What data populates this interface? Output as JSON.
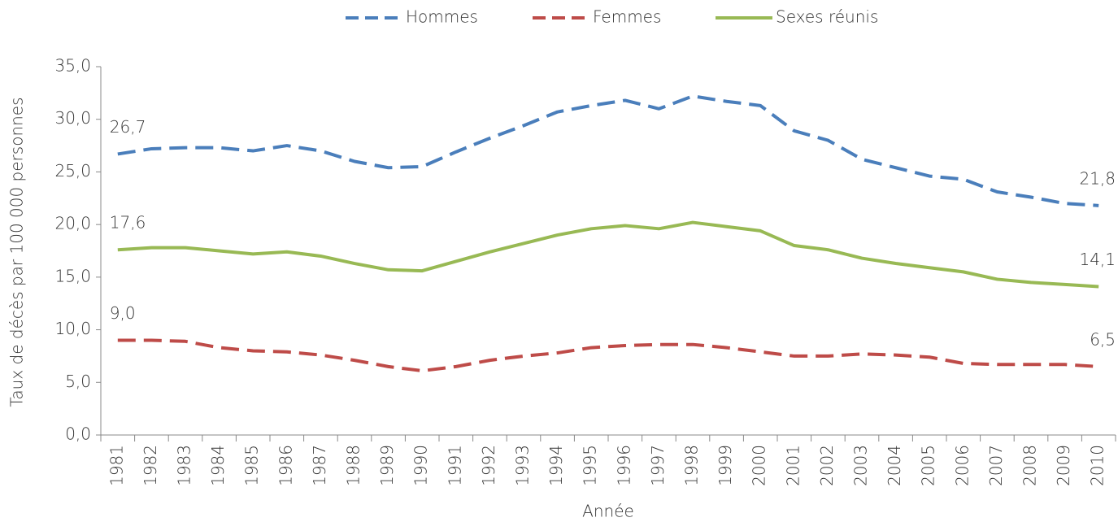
{
  "chart_data": {
    "type": "line",
    "x_label": "Année",
    "y_label": "Taux de décès par 100 000 personnes",
    "categories": [
      "1981",
      "1982",
      "1983",
      "1984",
      "1985",
      "1986",
      "1987",
      "1988",
      "1989",
      "1990",
      "1991",
      "1992",
      "1993",
      "1994",
      "1995",
      "1996",
      "1997",
      "1998",
      "1999",
      "2000",
      "2001",
      "2002",
      "2003",
      "2004",
      "2005",
      "2006",
      "2007",
      "2008",
      "2009",
      "2010"
    ],
    "series": [
      {
        "name": "Hommes",
        "color": "#4a7ebb",
        "dashed": true,
        "values": [
          26.7,
          27.2,
          27.3,
          27.3,
          27.0,
          27.5,
          27.0,
          26.0,
          25.4,
          25.5,
          26.9,
          28.2,
          29.4,
          30.7,
          31.3,
          31.8,
          31.0,
          32.2,
          31.7,
          31.3,
          28.9,
          28.0,
          26.2,
          25.4,
          24.6,
          24.3,
          23.1,
          22.6,
          22.0,
          21.8
        ],
        "value_labels": [
          "26,7",
          null,
          null,
          null,
          null,
          null,
          null,
          null,
          null,
          null,
          null,
          null,
          null,
          null,
          null,
          null,
          null,
          null,
          null,
          null,
          null,
          null,
          null,
          null,
          null,
          null,
          null,
          null,
          null,
          "21,8"
        ]
      },
      {
        "name": "Femmes",
        "color": "#be4b48",
        "dashed": true,
        "values": [
          9.0,
          9.0,
          8.9,
          8.3,
          8.0,
          7.9,
          7.6,
          7.1,
          6.5,
          6.1,
          6.5,
          7.1,
          7.5,
          7.8,
          8.3,
          8.5,
          8.6,
          8.6,
          8.3,
          7.9,
          7.5,
          7.5,
          7.7,
          7.6,
          7.4,
          6.8,
          6.7,
          6.7,
          6.7,
          6.5
        ],
        "value_labels": [
          "9,0",
          null,
          null,
          null,
          null,
          null,
          null,
          null,
          null,
          null,
          null,
          null,
          null,
          null,
          null,
          null,
          null,
          null,
          null,
          null,
          null,
          null,
          null,
          null,
          null,
          null,
          null,
          null,
          null,
          "6,5"
        ]
      },
      {
        "name": "Sexes réunis",
        "color": "#98b954",
        "dashed": false,
        "values": [
          17.6,
          17.8,
          17.8,
          17.5,
          17.2,
          17.4,
          17.0,
          16.3,
          15.7,
          15.6,
          16.5,
          17.4,
          18.2,
          19.0,
          19.6,
          19.9,
          19.6,
          20.2,
          19.8,
          19.4,
          18.0,
          17.6,
          16.8,
          16.3,
          15.9,
          15.5,
          14.8,
          14.5,
          14.3,
          14.1
        ],
        "value_labels": [
          "17,6",
          null,
          null,
          null,
          null,
          null,
          null,
          null,
          null,
          null,
          null,
          null,
          null,
          null,
          null,
          null,
          null,
          null,
          null,
          null,
          null,
          null,
          null,
          null,
          null,
          null,
          null,
          null,
          null,
          "14,1"
        ]
      }
    ],
    "ylim": [
      0,
      35
    ],
    "yticks": [
      {
        "value": 0,
        "label": "0,0"
      },
      {
        "value": 5,
        "label": "5,0"
      },
      {
        "value": 10,
        "label": "10,0"
      },
      {
        "value": 15,
        "label": "15,0"
      },
      {
        "value": 20,
        "label": "20,0"
      },
      {
        "value": 25,
        "label": "25,0"
      },
      {
        "value": 30,
        "label": "30,0"
      },
      {
        "value": 35,
        "label": "35,0"
      }
    ],
    "grid": false,
    "legend": "top"
  }
}
